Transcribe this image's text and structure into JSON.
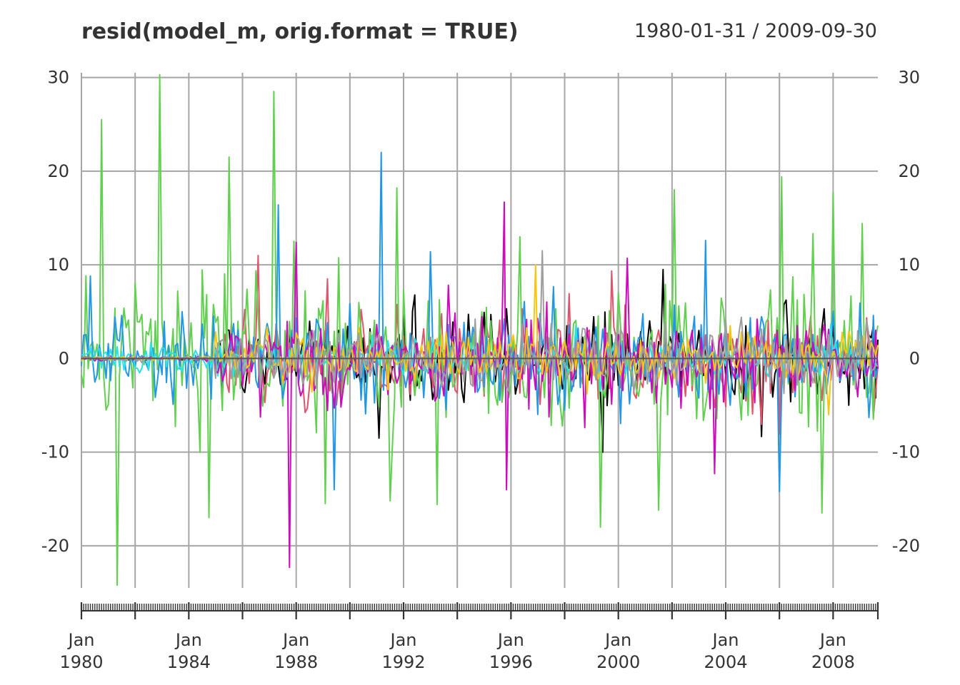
{
  "chart_data": {
    "type": "line",
    "title": "resid(model_m, orig.format = TRUE)",
    "date_range": "1980-01-31 / 2009-09-30",
    "x_start": "1980-01-31",
    "x_end": "2009-09-30",
    "frequency": "monthly",
    "ylim": [
      -24.5,
      30.5
    ],
    "y_ticks": [
      "30",
      "20",
      "10",
      "0",
      "-10",
      "-20"
    ],
    "y_tick_values": [
      30,
      20,
      10,
      0,
      -10,
      -20
    ],
    "x_major_ticks": [
      "1980-01",
      "1982-01",
      "1984-01",
      "1986-01",
      "1988-01",
      "1990-01",
      "1992-01",
      "1994-01",
      "1996-01",
      "1998-01",
      "2000-01",
      "2002-01",
      "2004-01",
      "2006-01",
      "2008-01"
    ],
    "x_tick_labels": [
      {
        "date": "1980-01",
        "month": "Jan",
        "year": "1980"
      },
      {
        "date": "1984-01",
        "month": "Jan",
        "year": "1984"
      },
      {
        "date": "1988-01",
        "month": "Jan",
        "year": "1988"
      },
      {
        "date": "1992-01",
        "month": "Jan",
        "year": "1992"
      },
      {
        "date": "1996-01",
        "month": "Jan",
        "year": "1996"
      },
      {
        "date": "2000-01",
        "month": "Jan",
        "year": "2000"
      },
      {
        "date": "2004-01",
        "month": "Jan",
        "year": "2004"
      },
      {
        "date": "2008-01",
        "month": "Jan",
        "year": "2008"
      }
    ],
    "grid": true,
    "legend": "none",
    "series": [
      {
        "color": "#000000",
        "typical_amplitude": 3.5,
        "active_from": "1985-01",
        "peaks": [
          {
            "date": "1991-02",
            "value": -8.5
          },
          {
            "date": "1999-06",
            "value": -10
          },
          {
            "date": "2001-09",
            "value": 9.5
          }
        ]
      },
      {
        "color": "#DF536B",
        "typical_amplitude": 4.5,
        "active_from": "1985-01",
        "peaks": [
          {
            "date": "1986-08",
            "value": 11
          },
          {
            "date": "1989-03",
            "value": 8.5
          }
        ]
      },
      {
        "color": "#61D04F",
        "typical_amplitude": 6.5,
        "active_from": "1980-01",
        "peaks": [
          {
            "date": "1980-10",
            "value": 25.5
          },
          {
            "date": "1981-05",
            "value": -24.2
          },
          {
            "date": "1982-12",
            "value": 30.3
          },
          {
            "date": "1984-10",
            "value": -17
          },
          {
            "date": "1985-07",
            "value": 21.5
          },
          {
            "date": "1987-03",
            "value": 28.5
          },
          {
            "date": "1989-02",
            "value": -15.5
          },
          {
            "date": "1991-10",
            "value": 18.2
          },
          {
            "date": "1991-07",
            "value": -15.2
          },
          {
            "date": "1996-05",
            "value": 13
          },
          {
            "date": "1999-05",
            "value": -18
          },
          {
            "date": "2001-07",
            "value": -16.2
          },
          {
            "date": "2002-02",
            "value": 18
          },
          {
            "date": "2006-02",
            "value": 19.4
          },
          {
            "date": "2007-08",
            "value": -16.5
          },
          {
            "date": "2008-01",
            "value": 17.7
          },
          {
            "date": "2009-02",
            "value": 14.4
          }
        ]
      },
      {
        "color": "#2297E6",
        "typical_amplitude": 4.0,
        "active_from": "1980-01",
        "peaks": [
          {
            "date": "1980-05",
            "value": 8.8
          },
          {
            "date": "1987-05",
            "value": 16.4
          },
          {
            "date": "1989-06",
            "value": -14
          },
          {
            "date": "1991-03",
            "value": 22
          },
          {
            "date": "1993-01",
            "value": 11.4
          },
          {
            "date": "2003-04",
            "value": 12.6
          },
          {
            "date": "2006-01",
            "value": -14.2
          }
        ]
      },
      {
        "color": "#28E2E5",
        "typical_amplitude": 1.5,
        "active_from": "1980-01",
        "peaks": [
          {
            "date": "1998-06",
            "value": 3.5
          }
        ]
      },
      {
        "color": "#CD0BBC",
        "typical_amplitude": 4.0,
        "active_from": "1985-01",
        "peaks": [
          {
            "date": "1987-10",
            "value": -22.3
          },
          {
            "date": "1988-01",
            "value": 12.4
          },
          {
            "date": "1995-10",
            "value": 16.7
          },
          {
            "date": "1995-11",
            "value": -14
          },
          {
            "date": "2000-05",
            "value": 10.7
          },
          {
            "date": "2003-08",
            "value": -12.3
          }
        ]
      },
      {
        "color": "#F5C710",
        "typical_amplitude": 2.5,
        "active_from": "1985-01",
        "peaks": [
          {
            "date": "1996-12",
            "value": 10
          },
          {
            "date": "2007-11",
            "value": -6
          }
        ]
      },
      {
        "color": "#9E9E9E",
        "typical_amplitude": 3.0,
        "active_from": "1985-01",
        "peaks": [
          {
            "date": "1997-03",
            "value": 11.5
          }
        ]
      }
    ]
  }
}
